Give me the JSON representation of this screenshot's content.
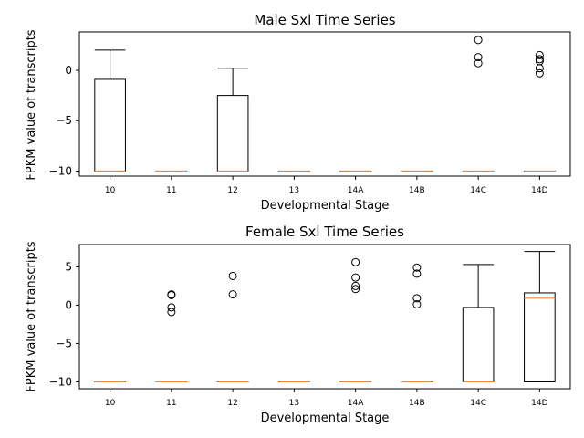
{
  "chart_data": [
    {
      "type": "box",
      "title": "Male Sxl Time Series",
      "xlabel": "Developmental Stage",
      "ylabel": "FPKM value of transcripts",
      "categories": [
        "10",
        "11",
        "12",
        "13",
        "14A",
        "14B",
        "14C",
        "14D"
      ],
      "ylim": [
        -10.5,
        3.8
      ],
      "yticks": [
        -10,
        -5,
        0
      ],
      "grid": false,
      "legend": "none",
      "box_color": "#000000",
      "median_color": "#e8893c",
      "boxes": [
        {
          "q1": -10,
          "median": -10,
          "q3": -0.9,
          "whisker_low": -10,
          "whisker_high": 2.0,
          "fliers": []
        },
        {
          "q1": -10,
          "median": -10,
          "q3": -10,
          "whisker_low": -10,
          "whisker_high": -10,
          "fliers": []
        },
        {
          "q1": -10,
          "median": -10,
          "q3": -2.5,
          "whisker_low": -10,
          "whisker_high": 0.2,
          "fliers": []
        },
        {
          "q1": -10,
          "median": -10,
          "q3": -10,
          "whisker_low": -10,
          "whisker_high": -10,
          "fliers": []
        },
        {
          "q1": -10,
          "median": -10,
          "q3": -10,
          "whisker_low": -10,
          "whisker_high": -10,
          "fliers": []
        },
        {
          "q1": -10,
          "median": -10,
          "q3": -10,
          "whisker_low": -10,
          "whisker_high": -10,
          "fliers": []
        },
        {
          "q1": -10,
          "median": -10,
          "q3": -10,
          "whisker_low": -10,
          "whisker_high": -10,
          "fliers": [
            3.0,
            1.3,
            0.7
          ]
        },
        {
          "q1": -10,
          "median": -10,
          "q3": -10,
          "whisker_low": -10,
          "whisker_high": -10,
          "fliers": [
            1.5,
            1.1,
            0.9,
            0.2,
            -0.3
          ]
        }
      ]
    },
    {
      "type": "box",
      "title": "Female Sxl Time Series",
      "xlabel": "Developmental Stage",
      "ylabel": "FPKM value of transcripts",
      "categories": [
        "10",
        "11",
        "12",
        "13",
        "14A",
        "14B",
        "14C",
        "14D"
      ],
      "ylim": [
        -10.9,
        7.9
      ],
      "yticks": [
        -10,
        -5,
        0,
        5
      ],
      "grid": false,
      "legend": "none",
      "box_color": "#000000",
      "median_color": "#e8893c",
      "boxes": [
        {
          "q1": -10,
          "median": -10,
          "q3": -10,
          "whisker_low": -10,
          "whisker_high": -10,
          "fliers": []
        },
        {
          "q1": -10,
          "median": -10,
          "q3": -10,
          "whisker_low": -10,
          "whisker_high": -10,
          "fliers": [
            1.4,
            1.3,
            -0.3,
            -0.9
          ]
        },
        {
          "q1": -10,
          "median": -10,
          "q3": -10,
          "whisker_low": -10,
          "whisker_high": -10,
          "fliers": [
            3.8,
            1.4
          ]
        },
        {
          "q1": -10,
          "median": -10,
          "q3": -10,
          "whisker_low": -10,
          "whisker_high": -10,
          "fliers": []
        },
        {
          "q1": -10,
          "median": -10,
          "q3": -10,
          "whisker_low": -10,
          "whisker_high": -10,
          "fliers": [
            5.6,
            3.6,
            2.5,
            2.1
          ]
        },
        {
          "q1": -10,
          "median": -10,
          "q3": -10,
          "whisker_low": -10,
          "whisker_high": -10,
          "fliers": [
            4.9,
            4.1,
            0.9,
            0.1
          ]
        },
        {
          "q1": -10,
          "median": -10,
          "q3": -0.3,
          "whisker_low": -10,
          "whisker_high": 5.3,
          "fliers": []
        },
        {
          "q1": -10,
          "median": 0.9,
          "q3": 1.6,
          "whisker_low": -10,
          "whisker_high": 7.0,
          "fliers": []
        }
      ]
    }
  ]
}
